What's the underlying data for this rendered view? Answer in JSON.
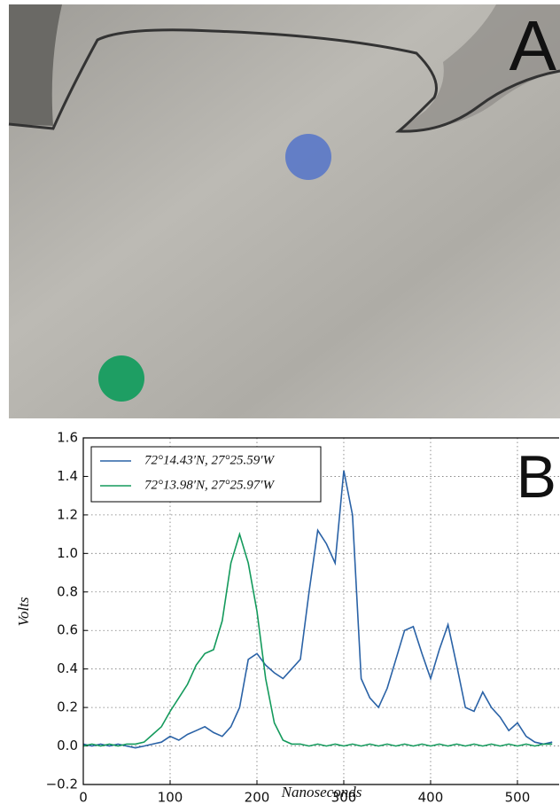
{
  "panel_a": {
    "label": "A"
  },
  "chart_data": {
    "type": "line",
    "panel_label": "B",
    "x_label": "Nanoseconds",
    "y_label": "Volts",
    "x": [
      0,
      10,
      20,
      30,
      40,
      50,
      60,
      70,
      80,
      90,
      100,
      110,
      120,
      130,
      140,
      150,
      160,
      170,
      180,
      190,
      200,
      210,
      220,
      230,
      240,
      250,
      260,
      270,
      280,
      290,
      300,
      310,
      320,
      330,
      340,
      350,
      360,
      370,
      380,
      390,
      400,
      410,
      420,
      430,
      440,
      450,
      460,
      470,
      480,
      490,
      500,
      510,
      520,
      530,
      540
    ],
    "series": [
      {
        "name": "72°14.43′N, 27°25.59′W",
        "color": "#2a62a6",
        "values": [
          0.01,
          0.0,
          0.01,
          0.0,
          0.01,
          0.0,
          -0.01,
          0.0,
          0.01,
          0.02,
          0.05,
          0.03,
          0.06,
          0.08,
          0.1,
          0.07,
          0.05,
          0.1,
          0.2,
          0.45,
          0.48,
          0.42,
          0.38,
          0.35,
          0.4,
          0.45,
          0.8,
          1.12,
          1.05,
          0.95,
          1.43,
          1.2,
          0.35,
          0.25,
          0.2,
          0.3,
          0.45,
          0.6,
          0.62,
          0.48,
          0.35,
          0.5,
          0.63,
          0.42,
          0.2,
          0.18,
          0.28,
          0.2,
          0.15,
          0.08,
          0.12,
          0.05,
          0.02,
          0.01,
          0.02
        ]
      },
      {
        "name": "72°13.98′N, 27°25.97′W",
        "color": "#149a5c",
        "values": [
          0.0,
          0.01,
          0.0,
          0.01,
          0.0,
          0.01,
          0.01,
          0.02,
          0.06,
          0.1,
          0.18,
          0.25,
          0.32,
          0.42,
          0.48,
          0.5,
          0.65,
          0.95,
          1.1,
          0.95,
          0.7,
          0.35,
          0.12,
          0.03,
          0.01,
          0.01,
          0.0,
          0.01,
          0.0,
          0.01,
          0.0,
          0.01,
          0.0,
          0.01,
          0.0,
          0.01,
          0.0,
          0.01,
          0.0,
          0.01,
          0.0,
          0.01,
          0.0,
          0.01,
          0.0,
          0.01,
          0.0,
          0.01,
          0.0,
          0.01,
          0.0,
          0.01,
          0.0,
          0.01,
          0.01
        ]
      }
    ],
    "xlim": [
      0,
      548
    ],
    "ylim": [
      -0.2,
      1.6
    ],
    "xticks": [
      0,
      100,
      200,
      300,
      400,
      500
    ],
    "yticks": [
      {
        "value": -0.2,
        "label": "−0.2"
      },
      {
        "value": 0,
        "label": "0.0"
      },
      0.2,
      0.4,
      0.6,
      0.8,
      {
        "value": 1,
        "label": "1.0"
      },
      1.2,
      1.4,
      1.6
    ],
    "grid": true,
    "legend": "upper left"
  }
}
